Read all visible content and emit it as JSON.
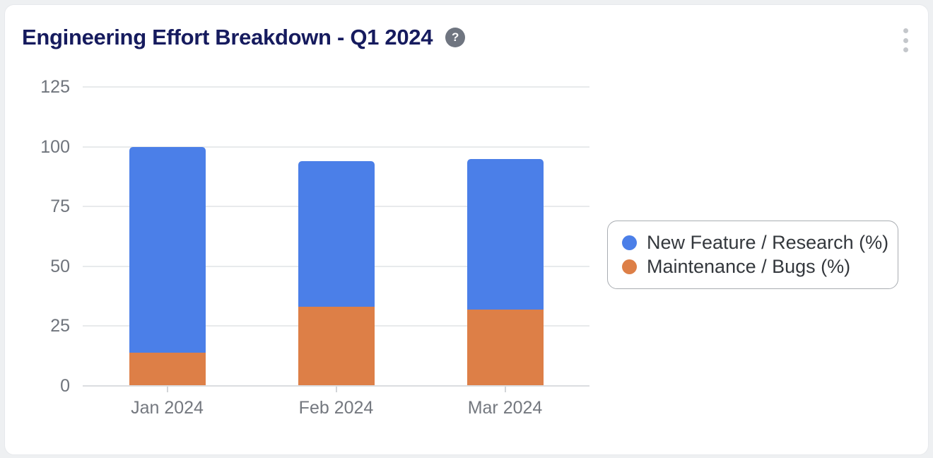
{
  "header": {
    "title": "Engineering Effort Breakdown - Q1 2024",
    "help_glyph": "?",
    "help_icon": "question-mark-circle-icon",
    "menu_icon": "kebab-vertical-icon"
  },
  "colors": {
    "new_feature": "#4b7fe8",
    "maintenance": "#dd7f47",
    "title_text": "#161b5e",
    "axis_text": "#6f747c",
    "legend_text": "#34383d",
    "gridline": "#e8eaec",
    "axis_line": "#dbdde0",
    "page_background": "#eef0f2",
    "card_background": "#ffffff",
    "legend_border": "#a9adb2",
    "help_icon_background": "#6f7580",
    "kebab_dot": "#c4c7cb"
  },
  "chart_data": {
    "type": "bar",
    "stacked": true,
    "title": "Engineering Effort Breakdown - Q1 2024",
    "categories": [
      "Jan 2024",
      "Feb 2024",
      "Mar 2024"
    ],
    "series": [
      {
        "name": "New Feature / Research (%)",
        "color": "#4b7fe8",
        "values": [
          86,
          61,
          63
        ]
      },
      {
        "name": "Maintenance / Bugs (%)",
        "color": "#dd7f47",
        "values": [
          14,
          33,
          32
        ]
      }
    ],
    "stack_order_bottom_to_top": [
      "Maintenance / Bugs (%)",
      "New Feature / Research (%)"
    ],
    "xlabel": "",
    "ylabel": "",
    "ylim": [
      0,
      125
    ],
    "yticks": [
      0,
      25,
      50,
      75,
      100,
      125
    ],
    "grid": true,
    "legend_position": "right"
  }
}
